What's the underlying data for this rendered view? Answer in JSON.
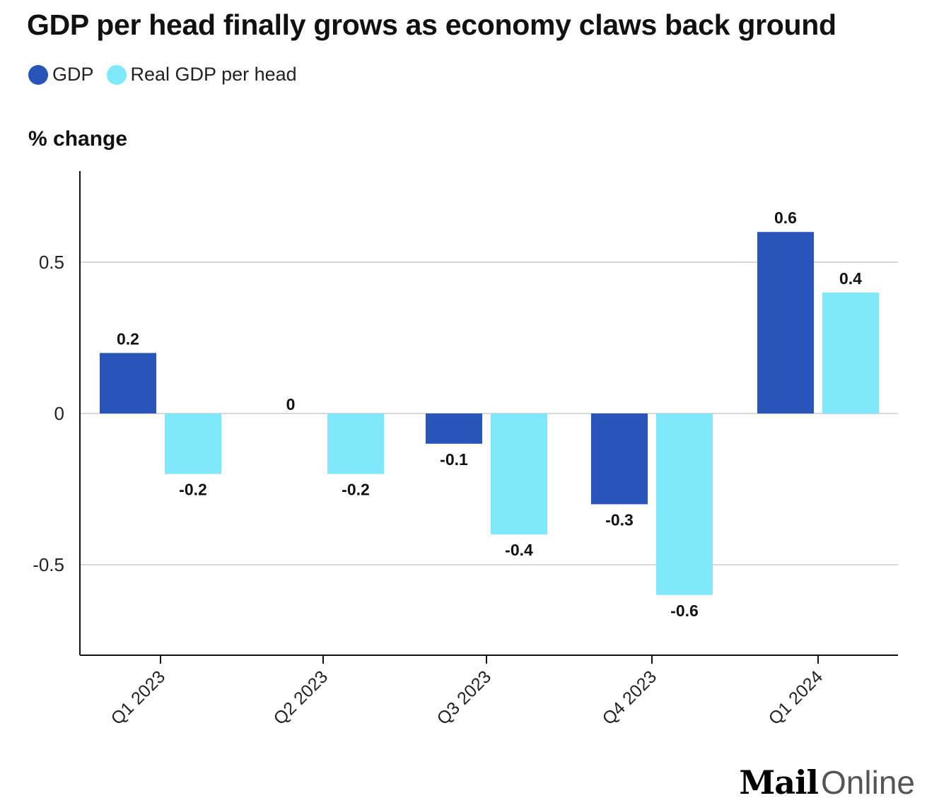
{
  "chart_data": {
    "type": "bar",
    "title": "GDP per head finally grows as economy claws back ground",
    "ylabel": "% change",
    "xlabel": "",
    "categories": [
      "Q1 2023",
      "Q2 2023",
      "Q3 2023",
      "Q4 2023",
      "Q1 2024"
    ],
    "series": [
      {
        "name": "GDP",
        "color": "#2a55b8",
        "values": [
          0.2,
          0,
          -0.1,
          -0.3,
          0.6
        ],
        "labels": [
          "0.2",
          "0",
          "-0.1",
          "-0.3",
          "0.6"
        ]
      },
      {
        "name": "Real GDP per head",
        "color": "#80e8fb",
        "values": [
          -0.2,
          -0.2,
          -0.4,
          -0.6,
          0.4
        ],
        "labels": [
          "-0.2",
          "-0.2",
          "-0.4",
          "-0.6",
          "0.4"
        ]
      }
    ],
    "ylim": [
      -0.8,
      0.8
    ],
    "yticks": [
      0.5,
      0,
      -0.5
    ],
    "ytick_labels": [
      "0.5",
      "0",
      "-0.5"
    ],
    "grid": true,
    "legend_position": "top-left"
  },
  "logo": {
    "mail": "Mail",
    "online": "Online"
  }
}
